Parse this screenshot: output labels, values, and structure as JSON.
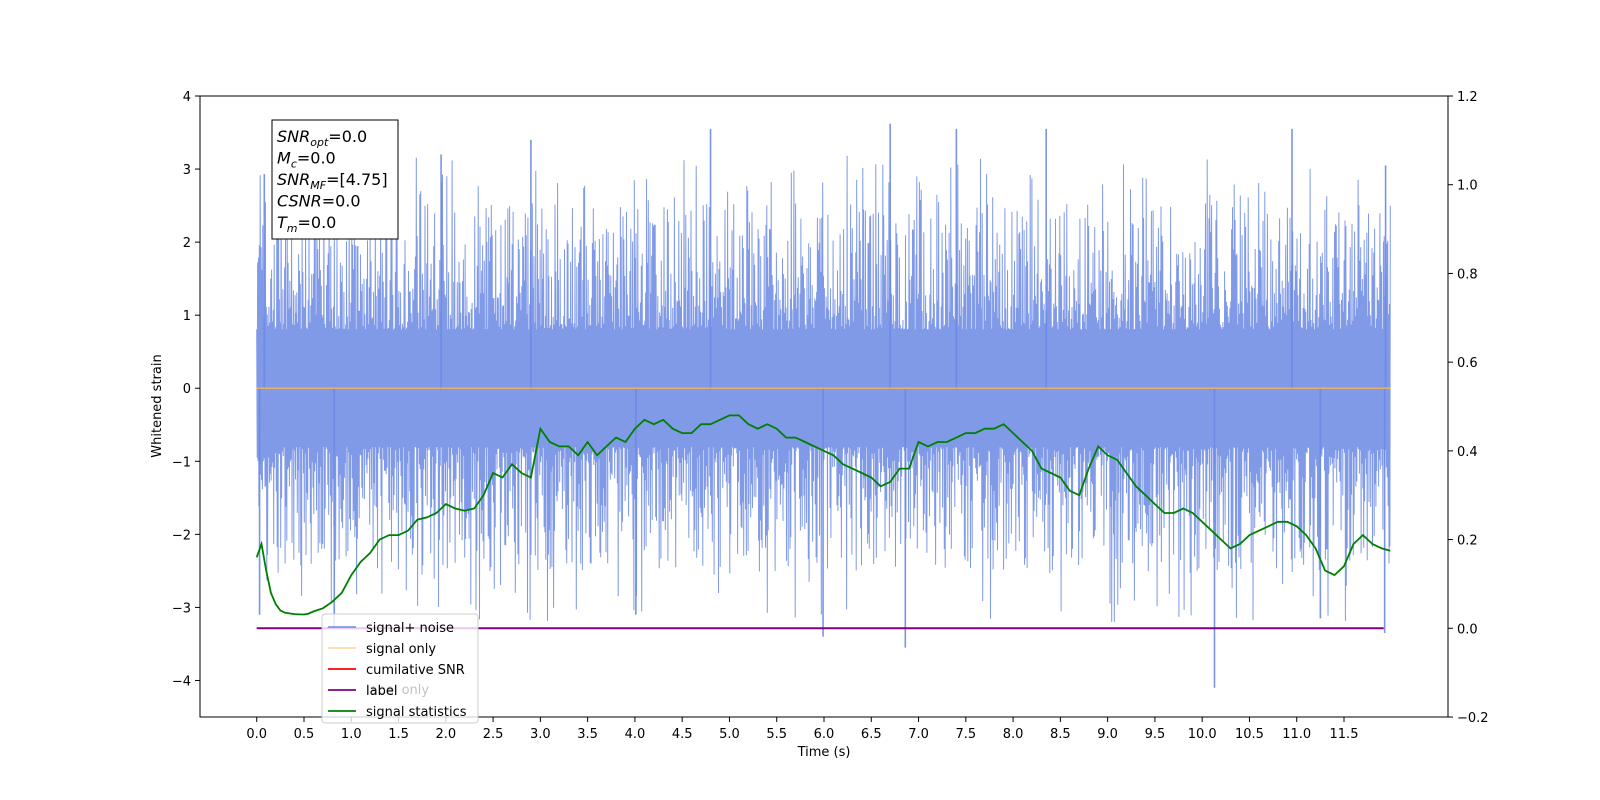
{
  "chart_data": {
    "type": "line",
    "title": "",
    "xlabel": "Time (s)",
    "ylabel": "Whitened strain",
    "xlim": [
      -0.6,
      12.6
    ],
    "ylim": [
      -4.5,
      4.0
    ],
    "y2lim": [
      -0.2,
      1.2
    ],
    "grid": false,
    "legend_position": "lower-left",
    "x_ticks": [
      "0.0",
      "0.5",
      "1.0",
      "1.5",
      "2.0",
      "2.5",
      "3.0",
      "3.5",
      "4.0",
      "4.5",
      "5.0",
      "5.5",
      "6.0",
      "6.5",
      "7.0",
      "7.5",
      "8.0",
      "8.5",
      "9.0",
      "9.5",
      "10.0",
      "10.5",
      "11.0",
      "11.5"
    ],
    "y_ticks": [
      "4",
      "3",
      "2",
      "1",
      "0",
      "−1",
      "−2",
      "−3",
      "−4"
    ],
    "y2_ticks": [
      "1.2",
      "1.0",
      "0.8",
      "0.6",
      "0.4",
      "0.2",
      "0.0",
      "−0.2"
    ],
    "annotation": [
      {
        "base": "SNR",
        "sub": "opt",
        "rest": "=0.0"
      },
      {
        "base": "M",
        "sub": "c",
        "rest": "=0.0"
      },
      {
        "base": "SNR",
        "sub": "MF",
        "rest": "=[4.75]"
      },
      {
        "base": "CSNR",
        "sub": "",
        "rest": "=0.0"
      },
      {
        "base": "T",
        "sub": "m",
        "rest": "=0.0"
      }
    ],
    "legend": [
      {
        "label": "signal+ noise",
        "color": "#6a88e4",
        "opacity": 0.85
      },
      {
        "label": "signal only",
        "color": "#ffb54a",
        "opacity": 0.5
      },
      {
        "label": "cumilative SNR",
        "color": "#ff0000",
        "opacity": 1
      },
      {
        "label": "label",
        "color": "#800080",
        "opacity": 1
      },
      {
        "label": "signal statistics",
        "color": "#008000",
        "opacity": 1
      }
    ],
    "overlay_text": [
      "label only"
    ],
    "series": [
      {
        "name": "signal+ noise",
        "axis": "left",
        "color": "#6a88e4",
        "x_range": [
          0.0,
          11.99
        ],
        "band_min": -2.3,
        "band_max": 2.3,
        "peaks": [
          {
            "x": 0.03,
            "y": -3.1
          },
          {
            "x": 0.08,
            "y": 2.93
          },
          {
            "x": 0.82,
            "y": -3.3
          },
          {
            "x": 1.95,
            "y": 3.2
          },
          {
            "x": 2.9,
            "y": 3.4
          },
          {
            "x": 4.01,
            "y": -3.1
          },
          {
            "x": 4.8,
            "y": 3.55
          },
          {
            "x": 5.99,
            "y": -3.4
          },
          {
            "x": 6.7,
            "y": 3.62
          },
          {
            "x": 6.86,
            "y": -3.55
          },
          {
            "x": 7.4,
            "y": 3.55
          },
          {
            "x": 8.35,
            "y": 3.55
          },
          {
            "x": 10.13,
            "y": -4.1
          },
          {
            "x": 10.95,
            "y": 3.55
          },
          {
            "x": 11.25,
            "y": -3.15
          },
          {
            "x": 11.94,
            "y": 3.05
          },
          {
            "x": 11.93,
            "y": -3.35
          }
        ]
      },
      {
        "name": "signal only",
        "axis": "left",
        "color": "#ffb54a",
        "x": [
          0.0,
          11.99
        ],
        "y": [
          0.0,
          0.0
        ]
      },
      {
        "name": "label",
        "axis": "right",
        "color": "#800080",
        "x": [
          0.0,
          11.92
        ],
        "y": [
          0.0,
          0.0
        ]
      },
      {
        "name": "signal statistics",
        "axis": "right",
        "color": "#008000",
        "x": [
          0.0,
          0.05,
          0.1,
          0.15,
          0.2,
          0.25,
          0.3,
          0.4,
          0.5,
          0.55,
          0.6,
          0.7,
          0.8,
          0.9,
          1.0,
          1.1,
          1.2,
          1.3,
          1.4,
          1.5,
          1.6,
          1.7,
          1.8,
          1.9,
          2.0,
          2.1,
          2.2,
          2.3,
          2.4,
          2.5,
          2.6,
          2.7,
          2.8,
          2.9,
          3.0,
          3.1,
          3.2,
          3.3,
          3.4,
          3.5,
          3.6,
          3.7,
          3.8,
          3.9,
          4.0,
          4.1,
          4.2,
          4.3,
          4.4,
          4.5,
          4.6,
          4.7,
          4.8,
          4.9,
          5.0,
          5.1,
          5.2,
          5.3,
          5.4,
          5.5,
          5.6,
          5.7,
          5.8,
          5.9,
          6.0,
          6.1,
          6.2,
          6.3,
          6.4,
          6.5,
          6.6,
          6.7,
          6.8,
          6.9,
          7.0,
          7.1,
          7.2,
          7.3,
          7.4,
          7.5,
          7.6,
          7.7,
          7.8,
          7.9,
          8.0,
          8.1,
          8.2,
          8.3,
          8.4,
          8.5,
          8.6,
          8.7,
          8.8,
          8.9,
          9.0,
          9.1,
          9.2,
          9.3,
          9.4,
          9.5,
          9.6,
          9.7,
          9.8,
          9.9,
          10.0,
          10.1,
          10.2,
          10.3,
          10.4,
          10.5,
          10.6,
          10.7,
          10.8,
          10.9,
          11.0,
          11.1,
          11.2,
          11.3,
          11.4,
          11.5,
          11.6,
          11.7,
          11.8,
          11.9,
          11.99
        ],
        "y": [
          0.16,
          0.19,
          0.13,
          0.08,
          0.055,
          0.04,
          0.035,
          0.032,
          0.031,
          0.033,
          0.038,
          0.045,
          0.06,
          0.08,
          0.12,
          0.15,
          0.17,
          0.2,
          0.21,
          0.21,
          0.22,
          0.245,
          0.25,
          0.26,
          0.28,
          0.27,
          0.265,
          0.27,
          0.3,
          0.35,
          0.34,
          0.37,
          0.35,
          0.34,
          0.45,
          0.42,
          0.41,
          0.41,
          0.39,
          0.42,
          0.39,
          0.41,
          0.43,
          0.42,
          0.45,
          0.47,
          0.46,
          0.47,
          0.45,
          0.44,
          0.44,
          0.46,
          0.46,
          0.47,
          0.48,
          0.48,
          0.46,
          0.45,
          0.46,
          0.45,
          0.43,
          0.43,
          0.42,
          0.41,
          0.4,
          0.39,
          0.37,
          0.36,
          0.35,
          0.34,
          0.32,
          0.33,
          0.36,
          0.36,
          0.42,
          0.41,
          0.42,
          0.42,
          0.43,
          0.44,
          0.44,
          0.45,
          0.45,
          0.46,
          0.44,
          0.42,
          0.4,
          0.36,
          0.35,
          0.34,
          0.31,
          0.3,
          0.36,
          0.41,
          0.39,
          0.38,
          0.35,
          0.32,
          0.3,
          0.28,
          0.26,
          0.26,
          0.27,
          0.26,
          0.24,
          0.22,
          0.2,
          0.18,
          0.19,
          0.21,
          0.22,
          0.23,
          0.24,
          0.24,
          0.23,
          0.21,
          0.18,
          0.13,
          0.12,
          0.14,
          0.19,
          0.21,
          0.19,
          0.18,
          0.175
        ]
      }
    ]
  }
}
